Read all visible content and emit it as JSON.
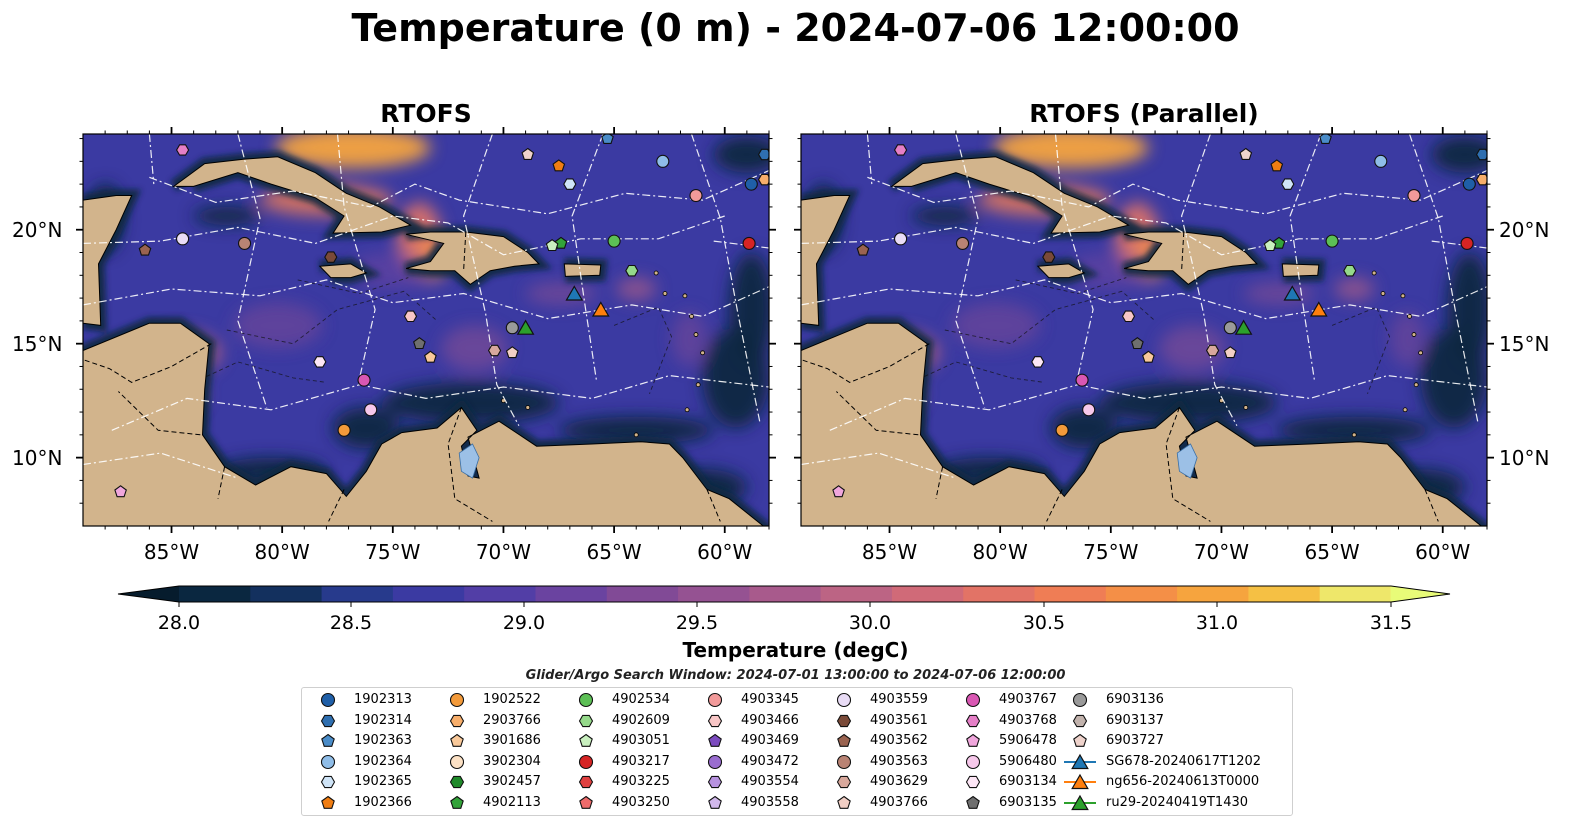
{
  "title": "Temperature (0 m) - 2024-07-06 12:00:00",
  "panels": [
    {
      "title": "RTOFS"
    },
    {
      "title": "RTOFS (Parallel)"
    }
  ],
  "axes": {
    "lon_ticks": [
      "85°W",
      "80°W",
      "75°W",
      "70°W",
      "65°W",
      "60°W"
    ],
    "lat_ticks": [
      "20°N",
      "15°N",
      "10°N"
    ],
    "lon_values": [
      -85,
      -80,
      -75,
      -70,
      -65,
      -60
    ],
    "lat_values": [
      20,
      15,
      10
    ],
    "lon_range": [
      -89,
      -58
    ],
    "lat_range": [
      7,
      24.2
    ]
  },
  "colorbar": {
    "label": "Temperature (degC)",
    "ticks": [
      "28.0",
      "28.5",
      "29.0",
      "29.5",
      "30.0",
      "30.5",
      "31.0",
      "31.5"
    ],
    "range": [
      28.0,
      31.5
    ],
    "colors": [
      "#0a2740",
      "#13305e",
      "#273a8c",
      "#3b3aa2",
      "#523ea6",
      "#6a43a0",
      "#814a96",
      "#955292",
      "#a85a8c",
      "#bc6484",
      "#d06a78",
      "#e27366",
      "#ef7d55",
      "#f48f47",
      "#f6a43e",
      "#f5c044",
      "#eee76a"
    ],
    "under_color": "#061c2d",
    "over_color": "#e8fb78"
  },
  "search_window": "Glider/Argo Search Window: 2024-07-01 13:00:00 to 2024-07-06 12:00:00",
  "legend": [
    {
      "label": "1902313",
      "marker": "circle",
      "color": "#1f5fa8"
    },
    {
      "label": "1902314",
      "marker": "hexagon",
      "color": "#2f6fb0"
    },
    {
      "label": "1902363",
      "marker": "pentagon",
      "color": "#4a8cc8"
    },
    {
      "label": "1902364",
      "marker": "circle",
      "color": "#8fbde8"
    },
    {
      "label": "1902365",
      "marker": "hexagon",
      "color": "#cfe4f7"
    },
    {
      "label": "1902366",
      "marker": "pentagon",
      "color": "#f07d12"
    },
    {
      "label": "1902522",
      "marker": "circle",
      "color": "#f39a3a"
    },
    {
      "label": "2903766",
      "marker": "hexagon",
      "color": "#f7ae6b"
    },
    {
      "label": "3901686",
      "marker": "pentagon",
      "color": "#f9c99a"
    },
    {
      "label": "3902304",
      "marker": "circle",
      "color": "#fce1c5"
    },
    {
      "label": "3902457",
      "marker": "hexagon",
      "color": "#1f8a2a"
    },
    {
      "label": "4902113",
      "marker": "pentagon",
      "color": "#33a33a"
    },
    {
      "label": "4902534",
      "marker": "circle",
      "color": "#5cbf55"
    },
    {
      "label": "4902609",
      "marker": "hexagon",
      "color": "#95d98a"
    },
    {
      "label": "4903051",
      "marker": "pentagon",
      "color": "#c9f0bf"
    },
    {
      "label": "4903217",
      "marker": "circle",
      "color": "#d62424"
    },
    {
      "label": "4903225",
      "marker": "hexagon",
      "color": "#e04040"
    },
    {
      "label": "4903250",
      "marker": "pentagon",
      "color": "#ee6b6b"
    },
    {
      "label": "4903345",
      "marker": "circle",
      "color": "#f29a9a"
    },
    {
      "label": "4903466",
      "marker": "hexagon",
      "color": "#f8c6c6"
    },
    {
      "label": "4903469",
      "marker": "pentagon",
      "color": "#7c4bbf"
    },
    {
      "label": "4903472",
      "marker": "circle",
      "color": "#9a6dd0"
    },
    {
      "label": "4903554",
      "marker": "hexagon",
      "color": "#b792df"
    },
    {
      "label": "4903558",
      "marker": "pentagon",
      "color": "#d2b8ec"
    },
    {
      "label": "4903559",
      "marker": "circle",
      "color": "#e9dcf6"
    },
    {
      "label": "4903561",
      "marker": "hexagon",
      "color": "#7a4a38"
    },
    {
      "label": "4903562",
      "marker": "pentagon",
      "color": "#9a6350"
    },
    {
      "label": "4903563",
      "marker": "circle",
      "color": "#b98374"
    },
    {
      "label": "4903629",
      "marker": "hexagon",
      "color": "#d8a89c"
    },
    {
      "label": "4903766",
      "marker": "pentagon",
      "color": "#f2cfc5"
    },
    {
      "label": "4903767",
      "marker": "circle",
      "color": "#d957b3"
    },
    {
      "label": "4903768",
      "marker": "hexagon",
      "color": "#e57fc7"
    },
    {
      "label": "5906478",
      "marker": "pentagon",
      "color": "#f0a6dc"
    },
    {
      "label": "5906480",
      "marker": "circle",
      "color": "#f7c8eb"
    },
    {
      "label": "6903134",
      "marker": "hexagon",
      "color": "#fde6f6"
    },
    {
      "label": "6903135",
      "marker": "pentagon",
      "color": "#6f6f6f"
    },
    {
      "label": "6903136",
      "marker": "circle",
      "color": "#9a9a9a"
    },
    {
      "label": "6903137",
      "marker": "hexagon",
      "color": "#c2b3ad"
    },
    {
      "label": "6903727",
      "marker": "pentagon",
      "color": "#efd3cc"
    },
    {
      "label": "SG678-20240617T1202",
      "marker": "triangle",
      "color": "#1f77b4",
      "line": true
    },
    {
      "label": "ng656-20240613T0000",
      "marker": "triangle",
      "color": "#ff7f0e",
      "line": true
    },
    {
      "label": "ru29-20240419T1430",
      "marker": "triangle",
      "color": "#2ca02c",
      "line": true
    }
  ],
  "floats": [
    {
      "label": "1902313",
      "lon": -58.8,
      "lat": 22.0
    },
    {
      "label": "1902314",
      "lon": -58.2,
      "lat": 23.3
    },
    {
      "label": "1902363",
      "lon": -65.3,
      "lat": 24.0
    },
    {
      "label": "1902364",
      "lon": -62.8,
      "lat": 23.0
    },
    {
      "label": "1902365",
      "lon": -67.0,
      "lat": 22.0
    },
    {
      "label": "1902366",
      "lon": -67.5,
      "lat": 22.8
    },
    {
      "label": "1902522",
      "lon": -77.2,
      "lat": 11.2
    },
    {
      "label": "2903766",
      "lon": -58.2,
      "lat": 22.2
    },
    {
      "label": "3901686",
      "lon": -73.3,
      "lat": 14.4
    },
    {
      "label": "4902113",
      "lon": -67.4,
      "lat": 19.4
    },
    {
      "label": "4902534",
      "lon": -65.0,
      "lat": 19.5
    },
    {
      "label": "4902609",
      "lon": -64.2,
      "lat": 18.2
    },
    {
      "label": "4903051",
      "lon": -67.8,
      "lat": 19.3
    },
    {
      "label": "4903217",
      "lon": -58.9,
      "lat": 19.4
    },
    {
      "label": "4903345",
      "lon": -61.3,
      "lat": 21.5
    },
    {
      "label": "4903466",
      "lon": -74.2,
      "lat": 16.2
    },
    {
      "label": "4903559",
      "lon": -84.5,
      "lat": 19.6
    },
    {
      "label": "4903561",
      "lon": -77.8,
      "lat": 18.8
    },
    {
      "label": "4903562",
      "lon": -86.2,
      "lat": 19.1
    },
    {
      "label": "4903563",
      "lon": -81.7,
      "lat": 19.4
    },
    {
      "label": "4903629",
      "lon": -70.4,
      "lat": 14.7
    },
    {
      "label": "4903766",
      "lon": -69.6,
      "lat": 14.6
    },
    {
      "label": "4903767",
      "lon": -76.3,
      "lat": 13.4
    },
    {
      "label": "4903768",
      "lon": -84.5,
      "lat": 23.5
    },
    {
      "label": "5906478",
      "lon": -87.3,
      "lat": 8.5
    },
    {
      "label": "5906480",
      "lon": -76.0,
      "lat": 12.1
    },
    {
      "label": "6903134",
      "lon": -78.3,
      "lat": 14.2
    },
    {
      "label": "6903135",
      "lon": -73.8,
      "lat": 15.0
    },
    {
      "label": "6903136",
      "lon": -69.6,
      "lat": 15.7
    },
    {
      "label": "6903727",
      "lon": -68.9,
      "lat": 23.3
    }
  ],
  "gliders": [
    {
      "label": "SG678-20240617T1202",
      "lon": -66.8,
      "lat": 17.2
    },
    {
      "label": "ng656-20240613T0000",
      "lon": -65.6,
      "lat": 16.5
    },
    {
      "label": "ru29-20240419T1430",
      "lon": -69.0,
      "lat": 15.7
    }
  ]
}
